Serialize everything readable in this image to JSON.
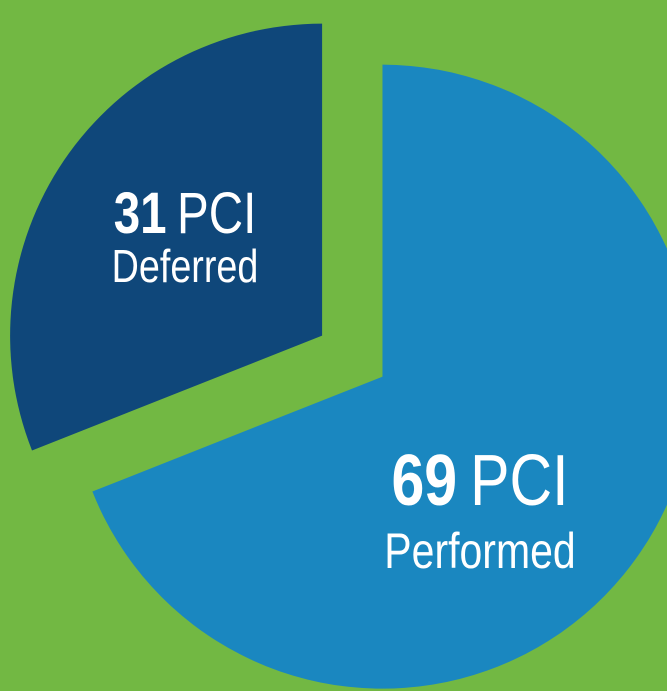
{
  "chart_data": {
    "type": "pie",
    "categories": [
      "Deferred",
      "Performed"
    ],
    "values": [
      31,
      69
    ],
    "unit_label": "PCI",
    "colors": [
      "#0f477a",
      "#1a87c0"
    ]
  }
}
